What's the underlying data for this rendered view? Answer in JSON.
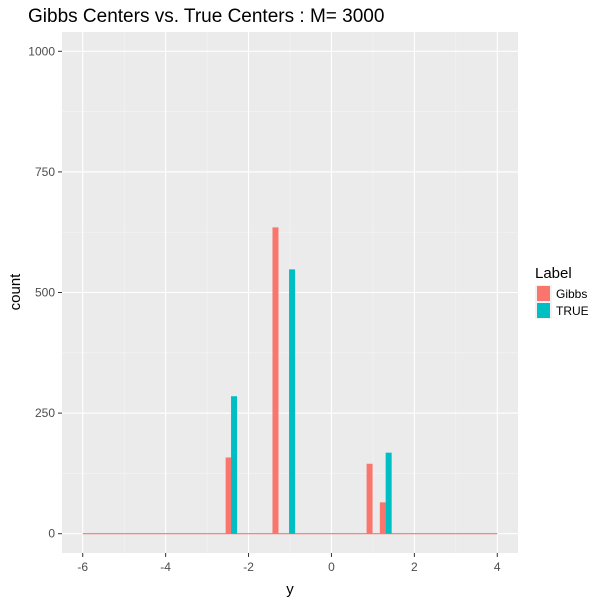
{
  "chart_data": {
    "type": "bar",
    "title": "Gibbs Centers vs. True Centers : M= 3000",
    "xlabel": "y",
    "ylabel": "count",
    "xlim": [
      -6.5,
      4.5
    ],
    "ylim": [
      -40,
      1040
    ],
    "x_ticks": [
      -6,
      -4,
      -2,
      0,
      2,
      4
    ],
    "y_ticks": [
      0,
      250,
      500,
      750,
      1000
    ],
    "baseline": {
      "series": "Gibbs",
      "from": -6,
      "to": 4,
      "value": 0
    },
    "legend": {
      "title": "Label",
      "position": "right"
    },
    "grid": true,
    "series": [
      {
        "name": "Gibbs",
        "color": "#F8766D",
        "bars": [
          {
            "x": -2.48,
            "count": 158
          },
          {
            "x": -1.35,
            "count": 635
          },
          {
            "x": 0.92,
            "count": 145
          },
          {
            "x": 1.24,
            "count": 65
          }
        ]
      },
      {
        "name": "TRUE",
        "color": "#00BFC4",
        "bars": [
          {
            "x": -2.35,
            "count": 285
          },
          {
            "x": -0.95,
            "count": 548
          },
          {
            "x": 1.38,
            "count": 168
          }
        ]
      }
    ]
  }
}
